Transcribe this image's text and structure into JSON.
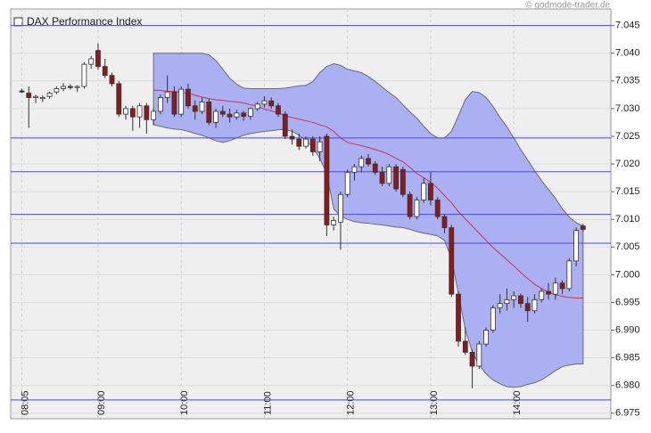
{
  "chart_data": {
    "type": "candlestick",
    "title": "DAX Performance Index",
    "source": "© godmode-trader.de",
    "categories": [
      "08:05",
      null,
      null,
      null,
      null,
      null,
      null,
      null,
      null,
      null,
      null,
      "09:00",
      null,
      null,
      null,
      null,
      null,
      null,
      null,
      null,
      null,
      null,
      null,
      "10:00",
      null,
      null,
      null,
      null,
      null,
      null,
      null,
      null,
      null,
      null,
      null,
      "11:00",
      null,
      null,
      null,
      null,
      null,
      null,
      null,
      null,
      null,
      null,
      null,
      "12:00",
      null,
      null,
      null,
      null,
      null,
      null,
      null,
      null,
      null,
      null,
      null,
      "13:00",
      null,
      null,
      null,
      null,
      null,
      null,
      null,
      null,
      null,
      null,
      null,
      "14:00",
      null,
      null,
      null,
      null,
      null,
      null,
      null,
      null,
      null,
      null
    ],
    "open": [
      7.0332,
      7.0328,
      7.032,
      7.0318,
      7.0322,
      7.033,
      7.0336,
      7.034,
      7.0338,
      7.034,
      7.038,
      7.0405,
      7.0376,
      7.036,
      7.0345,
      7.029,
      7.03,
      7.0285,
      7.0305,
      7.028,
      7.0295,
      7.032,
      7.033,
      7.029,
      7.0335,
      7.0305,
      7.0295,
      7.0312,
      7.0275,
      7.0295,
      7.029,
      7.0285,
      7.0292,
      7.0286,
      7.03,
      7.0308,
      7.0314,
      7.0305,
      7.029,
      7.025,
      7.0245,
      7.0232,
      7.0245,
      7.0222,
      7.025,
      7.009,
      7.0095,
      7.0145,
      7.0185,
      7.0195,
      7.021,
      7.02,
      7.0185,
      7.0165,
      7.0195,
      7.019,
      7.0145,
      7.0105,
      7.0135,
      7.0165,
      7.0135,
      7.0105,
      7.0085,
      6.9965,
      6.988,
      6.986,
      6.9835,
      6.9875,
      6.99,
      6.994,
      6.9948,
      6.9955,
      6.9962,
      6.9948,
      6.9935,
      6.9955,
      6.997,
      6.9965,
      6.9985,
      6.9975,
      7.0025,
      7.0088
    ],
    "high": [
      7.0336,
      7.034,
      7.0325,
      7.0324,
      7.033,
      7.034,
      7.0346,
      7.0344,
      7.0342,
      7.0384,
      7.0395,
      7.0418,
      7.039,
      7.0365,
      7.035,
      7.0305,
      7.0305,
      7.031,
      7.031,
      7.03,
      7.0325,
      7.036,
      7.034,
      7.034,
      7.0345,
      7.0315,
      7.032,
      7.0318,
      7.03,
      7.0305,
      7.03,
      7.0298,
      7.0296,
      7.0302,
      7.0312,
      7.0322,
      7.032,
      7.031,
      7.0295,
      7.0262,
      7.0255,
      7.025,
      7.025,
      7.025,
      7.0255,
      7.0105,
      7.015,
      7.019,
      7.02,
      7.0215,
      7.0218,
      7.0205,
      7.0195,
      7.02,
      7.02,
      7.0195,
      7.015,
      7.014,
      7.0175,
      7.0185,
      7.014,
      7.011,
      7.009,
      6.997,
      6.9905,
      6.9865,
      6.988,
      6.9905,
      6.9945,
      6.9965,
      6.9975,
      6.997,
      6.9966,
      6.996,
      6.9965,
      6.9975,
      6.9985,
      6.9995,
      6.999,
      7.003,
      7.0085,
      7.0092
    ],
    "low": [
      7.0328,
      7.0265,
      7.031,
      7.0312,
      7.0318,
      7.0326,
      7.0332,
      7.0334,
      7.033,
      7.0336,
      7.0372,
      7.037,
      7.0355,
      7.034,
      7.0285,
      7.028,
      7.026,
      7.0265,
      7.0255,
      7.027,
      7.029,
      7.031,
      7.0285,
      7.0285,
      7.03,
      7.028,
      7.029,
      7.027,
      7.0265,
      7.0285,
      7.0275,
      7.028,
      7.0278,
      7.028,
      7.0296,
      7.0302,
      7.03,
      7.0285,
      7.0245,
      7.0235,
      7.0225,
      7.0228,
      7.0215,
      7.0205,
      7.007,
      7.008,
      7.0045,
      7.014,
      7.017,
      7.0185,
      7.0195,
      7.018,
      7.016,
      7.016,
      7.015,
      7.014,
      7.01,
      7.01,
      7.013,
      7.0125,
      7.01,
      7.0075,
      6.996,
      6.987,
      6.9855,
      6.9795,
      6.983,
      6.987,
      6.9895,
      6.993,
      6.9935,
      6.994,
      6.994,
      6.9915,
      6.993,
      6.995,
      6.9955,
      6.9955,
      6.9965,
      6.997,
      7.0015,
      7.0078
    ],
    "close": [
      7.033,
      7.032,
      7.0322,
      7.032,
      7.0328,
      7.0336,
      7.034,
      7.0338,
      7.034,
      7.038,
      7.039,
      7.0376,
      7.036,
      7.0345,
      7.029,
      7.03,
      7.0285,
      7.0305,
      7.028,
      7.0295,
      7.032,
      7.033,
      7.029,
      7.0335,
      7.0305,
      7.0295,
      7.0312,
      7.0275,
      7.0295,
      7.029,
      7.0285,
      7.0292,
      7.0286,
      7.03,
      7.0308,
      7.0314,
      7.0305,
      7.029,
      7.025,
      7.0245,
      7.0232,
      7.0245,
      7.0222,
      7.024,
      7.009,
      7.0098,
      7.0145,
      7.0185,
      7.0195,
      7.021,
      7.02,
      7.0185,
      7.0165,
      7.0195,
      7.0155,
      7.0145,
      7.0105,
      7.0135,
      7.0165,
      7.0135,
      7.0105,
      7.0085,
      6.9965,
      6.988,
      6.986,
      6.9835,
      6.9875,
      6.99,
      6.994,
      6.9948,
      6.9955,
      6.9962,
      6.9948,
      6.9935,
      6.9955,
      6.997,
      6.9965,
      6.9985,
      6.9975,
      7.0025,
      7.008,
      7.0082
    ],
    "up_color": "#ffffff",
    "down_color": "#8b1a1a",
    "bands": {
      "upper": [
        null,
        null,
        null,
        null,
        null,
        null,
        null,
        null,
        null,
        null,
        null,
        null,
        null,
        null,
        null,
        null,
        null,
        null,
        null,
        7.04,
        7.04,
        7.04,
        7.04,
        7.04,
        7.04,
        7.04,
        7.04,
        7.0397,
        7.0387,
        7.0371,
        7.0355,
        7.0344,
        7.0337,
        7.0336,
        7.0336,
        7.0336,
        7.0336,
        7.0336,
        7.0337,
        7.0339,
        7.0341,
        7.0342,
        7.0349,
        7.0365,
        7.0376,
        7.0381,
        7.0378,
        7.0371,
        7.0368,
        7.0365,
        7.0358,
        7.0349,
        7.0339,
        7.0329,
        7.032,
        7.0307,
        7.0294,
        7.0283,
        7.0268,
        7.0255,
        7.0247,
        7.0247,
        7.0259,
        7.0287,
        7.0316,
        7.0331,
        7.0329,
        7.032,
        7.0304,
        7.0284,
        7.0267,
        7.0247,
        7.0226,
        7.0207,
        7.0188,
        7.017,
        7.0154,
        7.0138,
        7.0119,
        7.0104,
        7.0094,
        7.0088
      ],
      "middle": [
        null,
        null,
        null,
        null,
        null,
        null,
        null,
        null,
        null,
        null,
        null,
        null,
        null,
        null,
        null,
        null,
        null,
        null,
        null,
        7.0333,
        7.0333,
        7.0331,
        7.0331,
        7.0329,
        7.0328,
        7.0324,
        7.0321,
        7.0318,
        7.0316,
        7.0315,
        7.0313,
        7.0312,
        7.031,
        7.0307,
        7.0304,
        7.0299,
        7.0296,
        7.0292,
        7.0287,
        7.0284,
        7.0281,
        7.0278,
        7.0275,
        7.0271,
        7.0267,
        7.0259,
        7.0247,
        7.0239,
        7.0236,
        7.0233,
        7.023,
        7.0226,
        7.0222,
        7.0217,
        7.021,
        7.0204,
        7.0194,
        7.0183,
        7.0175,
        7.0167,
        7.0156,
        7.0143,
        7.013,
        7.0114,
        7.0101,
        7.0088,
        7.0075,
        7.0062,
        7.0049,
        7.0038,
        7.0027,
        7.0016,
        7.0004,
        6.9993,
        6.9983,
        6.9975,
        6.9969,
        6.9964,
        6.9961,
        6.9959,
        6.9958,
        6.9958
      ],
      "lower": [
        null,
        null,
        null,
        null,
        null,
        null,
        null,
        null,
        null,
        null,
        null,
        null,
        null,
        null,
        null,
        null,
        null,
        null,
        null,
        7.0271,
        7.0268,
        7.0265,
        7.0263,
        7.0262,
        7.0259,
        7.0255,
        7.0252,
        7.0247,
        7.0242,
        7.0239,
        7.0242,
        7.0247,
        7.0252,
        7.0255,
        7.0257,
        7.0259,
        7.026,
        7.0262,
        7.0262,
        7.0259,
        7.0252,
        7.0242,
        7.023,
        7.021,
        7.0183,
        7.0119,
        7.0106,
        7.01,
        7.0096,
        7.0094,
        7.0093,
        7.0091,
        7.009,
        7.0088,
        7.0086,
        7.0085,
        7.0082,
        7.0078,
        7.0075,
        7.0073,
        7.007,
        7.0062,
        7.003,
        6.9966,
        6.9901,
        6.9861,
        6.9837,
        6.9821,
        6.981,
        6.9803,
        6.9798,
        6.9797,
        6.9798,
        6.9802,
        6.9805,
        6.981,
        6.9818,
        6.9827,
        6.9834,
        6.9837,
        6.9839,
        6.9839
      ],
      "fill": "#aab0f2",
      "edge": "#6a6a7a",
      "middle_color": "#cc3355"
    },
    "levels": [
      7.045,
      7.0247,
      7.0186,
      7.0109,
      7.0057,
      6.9774
    ],
    "level_color": "#4a4ad0",
    "ylim": [
      6.974,
      7.048
    ],
    "yticks": [
      {
        "value": 6.975,
        "label": "6.975"
      },
      {
        "value": 6.98,
        "label": "6.980"
      },
      6.985,
      {
        "value": 6.99,
        "label": "6.990"
      },
      6.995,
      {
        "value": 7,
        "label": "7.000"
      },
      7.005,
      {
        "value": 7.01,
        "label": "7.010"
      },
      7.015,
      {
        "value": 7.02,
        "label": "7.020"
      },
      7.025,
      {
        "value": 7.03,
        "label": "7.030"
      },
      7.035,
      {
        "value": 7.04,
        "label": "7.040"
      },
      7.045
    ],
    "grid": true
  }
}
